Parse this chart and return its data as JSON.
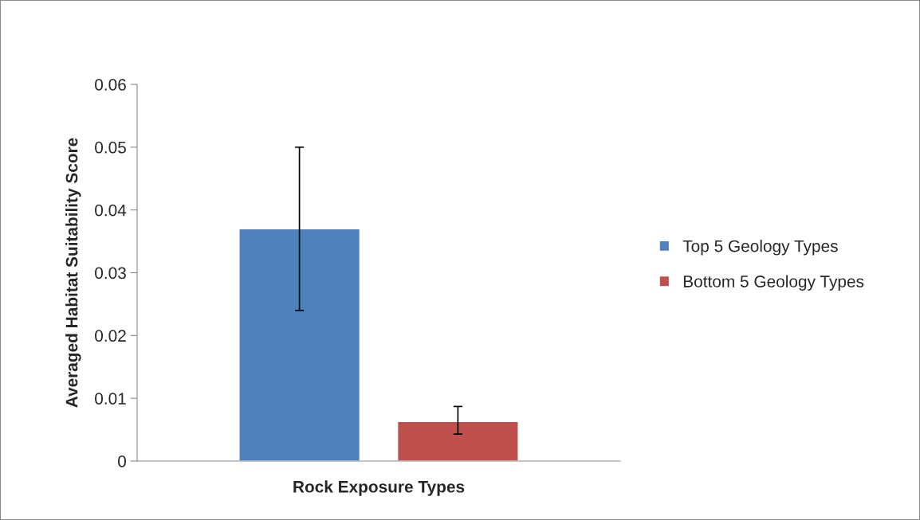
{
  "chart_data": {
    "type": "bar",
    "xlabel": "Rock Exposure Types",
    "ylabel": "Averaged Habitat Suitability Score",
    "categories": [
      null
    ],
    "series": [
      {
        "name": "Top 5 Geology Types",
        "color": "#4f81bd",
        "values": [
          0.037
        ],
        "errors": [
          [
            0.024,
            0.05
          ]
        ]
      },
      {
        "name": "Bottom 5 Geology Types",
        "color": "#c0504d",
        "values": [
          0.0063
        ],
        "errors": [
          [
            0.0043,
            0.0087
          ]
        ]
      }
    ],
    "ylim": [
      0,
      0.06
    ],
    "yticks": [
      {
        "value": 0,
        "label": "0"
      },
      0.01,
      0.02,
      0.03,
      0.04,
      0.05,
      0.06
    ],
    "grid": false,
    "legend": "right"
  }
}
